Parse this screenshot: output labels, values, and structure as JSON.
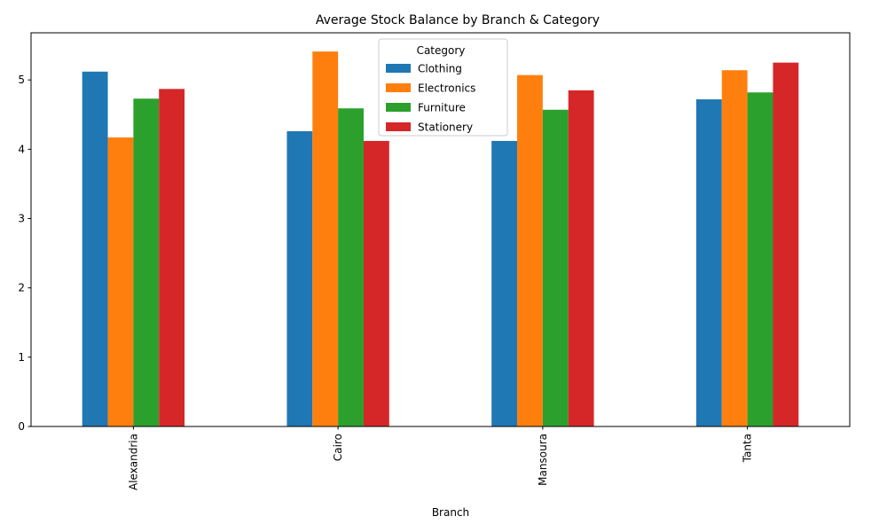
{
  "chart_data": {
    "type": "bar",
    "title": "Average Stock Balance by Branch & Category",
    "xlabel": "Branch",
    "ylabel": "",
    "categories": [
      "Alexandria",
      "Cairo",
      "Mansoura",
      "Tanta"
    ],
    "series": [
      {
        "name": "Clothing",
        "color": "#1f77b4",
        "values": [
          5.12,
          4.26,
          4.12,
          4.72
        ]
      },
      {
        "name": "Electronics",
        "color": "#ff7f0e",
        "values": [
          4.17,
          5.41,
          5.07,
          5.14
        ]
      },
      {
        "name": "Furniture",
        "color": "#2ca02c",
        "values": [
          4.73,
          4.59,
          4.57,
          4.82
        ]
      },
      {
        "name": "Stationery",
        "color": "#d62728",
        "values": [
          4.87,
          4.12,
          4.85,
          5.25
        ]
      }
    ],
    "ylim": [
      0,
      5.68
    ],
    "yticks": [
      "0",
      "1",
      "2",
      "3",
      "4",
      "5"
    ],
    "legend": {
      "title": "Category",
      "placement": "top-center"
    },
    "grid": false
  }
}
